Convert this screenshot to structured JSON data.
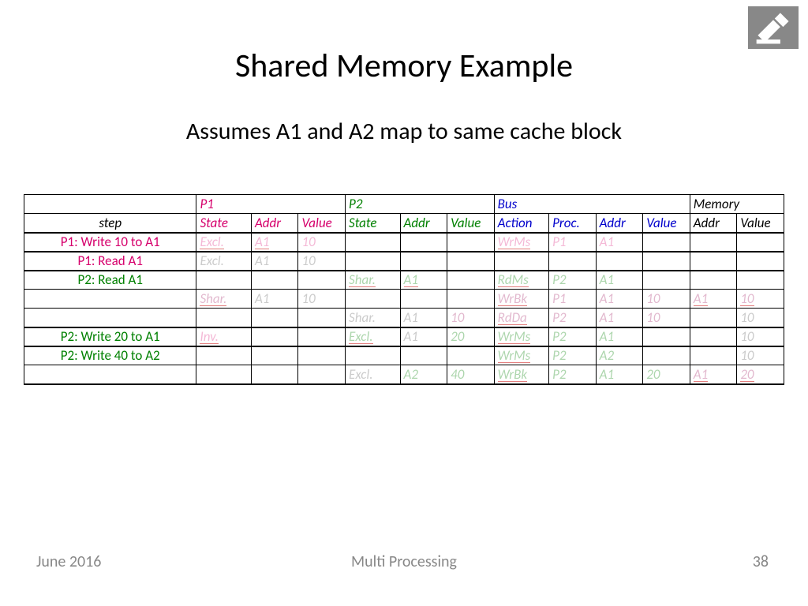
{
  "title": "Shared Memory Example",
  "subtitle": "Assumes A1 and A2 map to same cache block",
  "footer": {
    "date": "June 2016",
    "center": "Multi Processing",
    "page": "38"
  },
  "colors": {
    "p1": "#d6006c",
    "p2": "#008000",
    "bus": "#0000cc",
    "mem": "#000000",
    "grid": "#000000",
    "bg": "#ffffff",
    "footer_text": "#888888",
    "faded_p1": "rgba(214,0,108,0.28)",
    "faded_p2": "rgba(0,128,0,0.32)",
    "faded_bus": "rgba(0,0,204,0.28)",
    "faded_grey": "rgba(140,140,140,0.45)"
  },
  "table": {
    "col_widths_pct": [
      22,
      7,
      6,
      6,
      7,
      6,
      6,
      7,
      6,
      6,
      6,
      6,
      6
    ],
    "group_headers": [
      {
        "label": "",
        "span": 1,
        "cls": ""
      },
      {
        "label": "P1",
        "span": 3,
        "cls": "c-p1"
      },
      {
        "label": "P2",
        "span": 3,
        "cls": "c-p2"
      },
      {
        "label": "Bus",
        "span": 4,
        "cls": "c-bus"
      },
      {
        "label": "Memory",
        "span": 2,
        "cls": "c-mem"
      }
    ],
    "col_headers": [
      {
        "label": "step",
        "cls": "step-hdr"
      },
      {
        "label": "State",
        "cls": "c-p1"
      },
      {
        "label": "Addr",
        "cls": "c-p1"
      },
      {
        "label": "Value",
        "cls": "c-p1"
      },
      {
        "label": "State",
        "cls": "c-p2"
      },
      {
        "label": "Addr",
        "cls": "c-p2"
      },
      {
        "label": "Value",
        "cls": "c-p2"
      },
      {
        "label": "Action",
        "cls": "c-bus"
      },
      {
        "label": "Proc.",
        "cls": "c-bus"
      },
      {
        "label": "Addr",
        "cls": "c-bus"
      },
      {
        "label": "Value",
        "cls": "c-bus"
      },
      {
        "label": "Addr",
        "cls": "c-mem"
      },
      {
        "label": "Value",
        "cls": "c-mem"
      }
    ],
    "rows": [
      {
        "thick_top": true,
        "cells": [
          {
            "t": "P1: Write 10 to A1",
            "cls": "step-cell c-p1"
          },
          {
            "t": "Excl.",
            "cls": "faded1",
            "ul": true
          },
          {
            "t": "A1",
            "cls": "faded1",
            "ul": true
          },
          {
            "t": "10",
            "cls": "faded1"
          },
          {
            "t": ""
          },
          {
            "t": ""
          },
          {
            "t": ""
          },
          {
            "t": "WrMs",
            "cls": "faded1",
            "ul": true
          },
          {
            "t": "P1",
            "cls": "faded1"
          },
          {
            "t": "A1",
            "cls": "faded1"
          },
          {
            "t": ""
          },
          {
            "t": ""
          },
          {
            "t": ""
          }
        ]
      },
      {
        "thick_top": true,
        "cells": [
          {
            "t": "P1: Read A1",
            "cls": "step-cell c-p1"
          },
          {
            "t": "Excl.",
            "cls": "faded5"
          },
          {
            "t": "A1",
            "cls": "faded5"
          },
          {
            "t": "10",
            "cls": "faded5"
          },
          {
            "t": ""
          },
          {
            "t": ""
          },
          {
            "t": ""
          },
          {
            "t": ""
          },
          {
            "t": ""
          },
          {
            "t": ""
          },
          {
            "t": ""
          },
          {
            "t": ""
          },
          {
            "t": ""
          }
        ]
      },
      {
        "thick_top": true,
        "cells": [
          {
            "t": "P2: Read A1",
            "cls": "step-cell c-p2"
          },
          {
            "t": ""
          },
          {
            "t": ""
          },
          {
            "t": ""
          },
          {
            "t": "Shar.",
            "cls": "faded2",
            "ul": true
          },
          {
            "t": "A1",
            "cls": "faded2",
            "ul": true
          },
          {
            "t": ""
          },
          {
            "t": "RdMs",
            "cls": "faded2",
            "ul": true
          },
          {
            "t": "P2",
            "cls": "faded2"
          },
          {
            "t": "A1",
            "cls": "faded2"
          },
          {
            "t": ""
          },
          {
            "t": ""
          },
          {
            "t": ""
          }
        ]
      },
      {
        "cells": [
          {
            "t": ""
          },
          {
            "t": "Shar.",
            "cls": "faded4",
            "ul": true
          },
          {
            "t": "A1",
            "cls": "faded5"
          },
          {
            "t": "10",
            "cls": "faded5"
          },
          {
            "t": ""
          },
          {
            "t": ""
          },
          {
            "t": ""
          },
          {
            "t": "WrBk",
            "cls": "faded4",
            "ul": true
          },
          {
            "t": "P1",
            "cls": "faded4"
          },
          {
            "t": "A1",
            "cls": "faded4"
          },
          {
            "t": "10",
            "cls": "faded4"
          },
          {
            "t": "A1",
            "cls": "faded4",
            "ul": true
          },
          {
            "t": "10",
            "cls": "faded4",
            "ul": true
          }
        ]
      },
      {
        "cells": [
          {
            "t": ""
          },
          {
            "t": ""
          },
          {
            "t": ""
          },
          {
            "t": ""
          },
          {
            "t": "Shar.",
            "cls": "faded5"
          },
          {
            "t": "A1",
            "cls": "faded5"
          },
          {
            "t": "10",
            "cls": "faded4"
          },
          {
            "t": "RdDa",
            "cls": "faded4",
            "ul": true
          },
          {
            "t": "P2",
            "cls": "faded4"
          },
          {
            "t": "A1",
            "cls": "faded4"
          },
          {
            "t": "10",
            "cls": "faded4"
          },
          {
            "t": ""
          },
          {
            "t": "10",
            "cls": "faded5"
          }
        ]
      },
      {
        "thick_top": true,
        "cells": [
          {
            "t": "P2: Write 20 to A1",
            "cls": "step-cell c-p2"
          },
          {
            "t": "Inv.",
            "cls": "faded1",
            "ul": true
          },
          {
            "t": ""
          },
          {
            "t": ""
          },
          {
            "t": "Excl.",
            "cls": "faded2",
            "ul": true
          },
          {
            "t": "A1",
            "cls": "faded5"
          },
          {
            "t": "20",
            "cls": "faded2"
          },
          {
            "t": "WrMs",
            "cls": "faded2",
            "ul": true
          },
          {
            "t": "P2",
            "cls": "faded2"
          },
          {
            "t": "A1",
            "cls": "faded2"
          },
          {
            "t": ""
          },
          {
            "t": ""
          },
          {
            "t": "10",
            "cls": "faded5"
          }
        ]
      },
      {
        "thick_top": true,
        "cells": [
          {
            "t": "P2: Write 40 to A2",
            "cls": "step-cell c-p2"
          },
          {
            "t": ""
          },
          {
            "t": ""
          },
          {
            "t": ""
          },
          {
            "t": ""
          },
          {
            "t": ""
          },
          {
            "t": ""
          },
          {
            "t": "WrMs",
            "cls": "faded2",
            "ul": true
          },
          {
            "t": "P2",
            "cls": "faded2"
          },
          {
            "t": "A2",
            "cls": "faded2"
          },
          {
            "t": ""
          },
          {
            "t": ""
          },
          {
            "t": "10",
            "cls": "faded5"
          }
        ]
      },
      {
        "thick_bottom": true,
        "cells": [
          {
            "t": ""
          },
          {
            "t": ""
          },
          {
            "t": ""
          },
          {
            "t": ""
          },
          {
            "t": "Excl.",
            "cls": "faded5"
          },
          {
            "t": "A2",
            "cls": "faded2"
          },
          {
            "t": "40",
            "cls": "faded2"
          },
          {
            "t": "WrBk",
            "cls": "faded2",
            "ul": true
          },
          {
            "t": "P2",
            "cls": "faded2"
          },
          {
            "t": "A1",
            "cls": "faded2"
          },
          {
            "t": "20",
            "cls": "faded2"
          },
          {
            "t": "A1",
            "cls": "faded4",
            "ul": true
          },
          {
            "t": "20",
            "cls": "faded4",
            "ul": true
          }
        ]
      }
    ]
  }
}
